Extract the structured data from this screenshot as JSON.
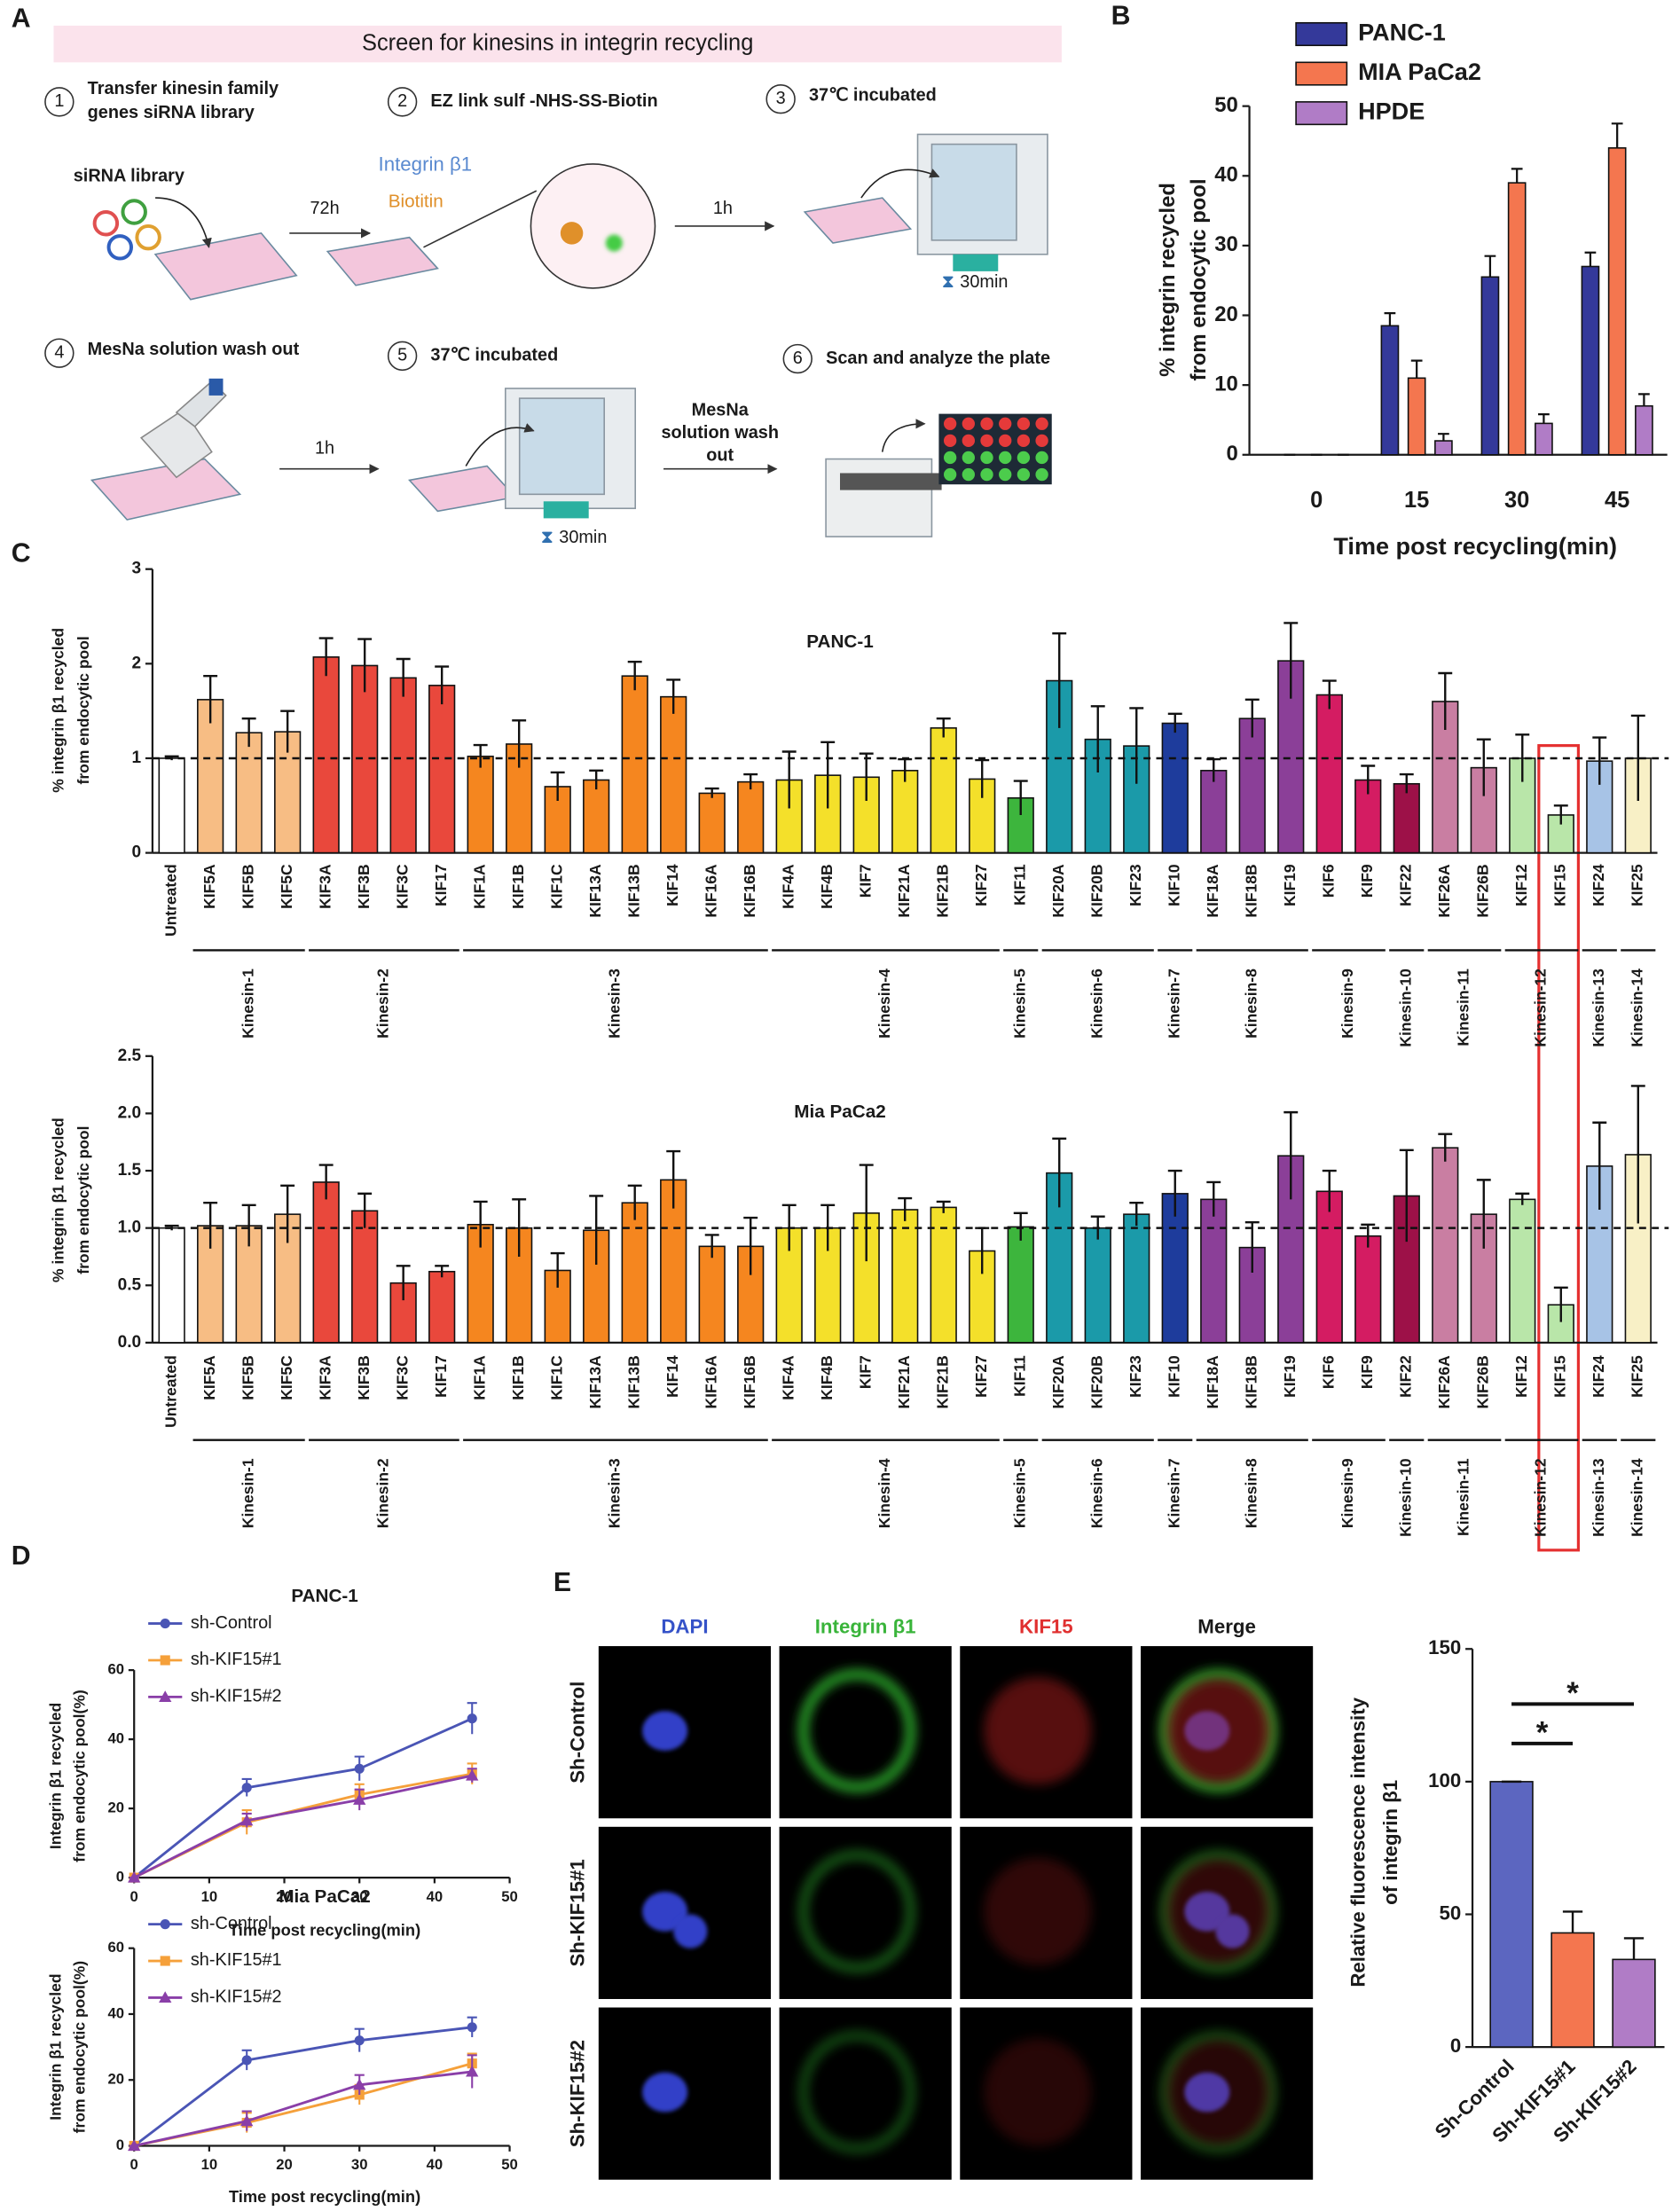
{
  "diagram": {
    "panel": "A",
    "title": "Screen for kinesins in integrin recycling",
    "steps": [
      {
        "number": 1,
        "text": [
          "Transfer kinesin family",
          "genes siRNA library"
        ]
      },
      {
        "number": 2,
        "text": [
          "EZ link sulf -NHS-SS-Biotin"
        ]
      },
      {
        "number": 3,
        "text": [
          "37℃ incubated"
        ]
      },
      {
        "number": 4,
        "text": [
          "MesNa solution wash out"
        ]
      },
      {
        "number": 5,
        "text": [
          "37℃ incubated"
        ]
      },
      {
        "number": 6,
        "text": [
          "Scan and analyze the plate"
        ]
      }
    ],
    "labels": {
      "sirna": "siRNA library",
      "t1": "72h",
      "integrin": "Integrin β1",
      "biotin": "Biotitin",
      "t2": "1h",
      "t3": "30min",
      "t4": "1h",
      "mesna": [
        "MesNa",
        "solution wash",
        "out"
      ],
      "t5": "30min"
    }
  },
  "micrograph": {
    "panel": "E",
    "channels": [
      "DAPI",
      "Integrin β1",
      "KIF15",
      "Merge"
    ],
    "channel_colors": [
      "#3552c8",
      "#39b43a",
      "#e03030",
      "#1a1a1a"
    ],
    "conditions": [
      "Sh-Control",
      "Sh-KIF15#1",
      "Sh-KIF15#2"
    ]
  },
  "chart_data": [
    {
      "type": "bar",
      "panel": "B",
      "xlabel": "Time post recycling(min)",
      "ylabel": [
        "% integrin recycled",
        "from endocytic pool"
      ],
      "categories": [
        "0",
        "15",
        "30",
        "45"
      ],
      "series": [
        {
          "name": "PANC-1",
          "color": "#34399a",
          "values": [
            0,
            18.5,
            25.5,
            27
          ],
          "errors": [
            0,
            1.8,
            3,
            2
          ]
        },
        {
          "name": "MIA PaCa2",
          "color": "#f4764f",
          "values": [
            0,
            11,
            39,
            44
          ],
          "errors": [
            0,
            2.5,
            2,
            3.5
          ]
        },
        {
          "name": "HPDE",
          "color": "#b07cc6",
          "values": [
            0,
            2,
            4.5,
            7
          ],
          "errors": [
            0,
            1,
            1.3,
            1.7
          ]
        }
      ],
      "ylim": [
        0,
        50
      ],
      "yticks": [
        0,
        10,
        20,
        30,
        40,
        50
      ]
    },
    {
      "type": "bar",
      "panel": "C",
      "title": "PANC-1",
      "ylabel": [
        "% integrin β1 recycled",
        "from endocytic pool"
      ],
      "color": "#ffffff",
      "categories": [
        "Untreated",
        "KIF5A",
        "KIF5B",
        "KIF5C",
        "KIF3A",
        "KIF3B",
        "KIF3C",
        "KIF17",
        "KIF1A",
        "KIF1B",
        "KIF1C",
        "KIF13A",
        "KIF13B",
        "KIF14",
        "KIF16A",
        "KIF16B",
        "KIF4A",
        "KIF4B",
        "KIF7",
        "KIF21A",
        "KIF21B",
        "KIF27",
        "KIF11",
        "KIF20A",
        "KIF20B",
        "KIF23",
        "KIF10",
        "KIF18A",
        "KIF18B",
        "KIF19",
        "KIF6",
        "KIF9",
        "KIF22",
        "KIF26A",
        "KIF26B",
        "KIF12",
        "KIF15",
        "KIF24",
        "KIF25"
      ],
      "values": [
        1.0,
        1.62,
        1.27,
        1.28,
        2.07,
        1.98,
        1.85,
        1.77,
        1.02,
        1.15,
        0.7,
        0.77,
        1.87,
        1.65,
        0.63,
        0.75,
        0.77,
        0.82,
        0.8,
        0.87,
        1.32,
        0.78,
        0.58,
        1.82,
        1.2,
        1.13,
        1.37,
        0.87,
        1.42,
        2.03,
        1.67,
        0.77,
        0.73,
        1.6,
        0.9,
        1.0,
        0.4,
        0.97,
        1.0
      ],
      "errors": [
        0.02,
        0.25,
        0.15,
        0.22,
        0.2,
        0.28,
        0.2,
        0.2,
        0.12,
        0.25,
        0.15,
        0.1,
        0.15,
        0.18,
        0.05,
        0.08,
        0.3,
        0.35,
        0.25,
        0.12,
        0.1,
        0.2,
        0.18,
        0.5,
        0.35,
        0.4,
        0.1,
        0.12,
        0.2,
        0.4,
        0.15,
        0.15,
        0.1,
        0.3,
        0.3,
        0.25,
        0.1,
        0.25,
        0.45
      ],
      "groups": [
        {
          "name": "Kinesin-1",
          "size": 3,
          "color": "#f7bd84"
        },
        {
          "name": "Kinesin-2",
          "size": 4,
          "color": "#e9483c"
        },
        {
          "name": "Kinesin-3",
          "size": 8,
          "color": "#f5861f"
        },
        {
          "name": "Kinesin-4",
          "size": 6,
          "color": "#f4e02a"
        },
        {
          "name": "Kinesin-5",
          "size": 1,
          "color": "#3db53d"
        },
        {
          "name": "Kinesin-6",
          "size": 3,
          "color": "#1b9aa9"
        },
        {
          "name": "Kinesin-7",
          "size": 1,
          "color": "#1e3c9c"
        },
        {
          "name": "Kinesin-8",
          "size": 3,
          "color": "#8b3f98"
        },
        {
          "name": "Kinesin-9",
          "size": 2,
          "color": "#d41c62"
        },
        {
          "name": "Kinesin-10",
          "size": 1,
          "color": "#9d1148"
        },
        {
          "name": "Kinesin-11",
          "size": 2,
          "color": "#c97ea2"
        },
        {
          "name": "Kinesin-12",
          "size": 2,
          "color": "#b9e6a9"
        },
        {
          "name": "Kinesin-13",
          "size": 1,
          "color": "#a7c3e6"
        },
        {
          "name": "Kinesin-14",
          "size": 1,
          "color": "#f8f0c6"
        }
      ],
      "refline": 1,
      "ylim": [
        0,
        3
      ],
      "yticks": [
        0,
        1,
        2,
        3
      ]
    },
    {
      "type": "bar",
      "title": "Mia PaCa2",
      "ylabel": [
        "% integrin β1 recycled",
        "from endocytic pool"
      ],
      "color": "#ffffff",
      "categories": [
        "Untreated",
        "KIF5A",
        "KIF5B",
        "KIF5C",
        "KIF3A",
        "KIF3B",
        "KIF3C",
        "KIF17",
        "KIF1A",
        "KIF1B",
        "KIF1C",
        "KIF13A",
        "KIF13B",
        "KIF14",
        "KIF16A",
        "KIF16B",
        "KIF4A",
        "KIF4B",
        "KIF7",
        "KIF21A",
        "KIF21B",
        "KIF27",
        "KIF11",
        "KIF20A",
        "KIF20B",
        "KIF23",
        "KIF10",
        "KIF18A",
        "KIF18B",
        "KIF19",
        "KIF6",
        "KIF9",
        "KIF22",
        "KIF26A",
        "KIF26B",
        "KIF12",
        "KIF15",
        "KIF24",
        "KIF25"
      ],
      "values": [
        1.0,
        1.02,
        1.02,
        1.12,
        1.4,
        1.15,
        0.52,
        0.62,
        1.03,
        1.0,
        0.63,
        0.98,
        1.22,
        1.42,
        0.84,
        0.84,
        1.0,
        1.0,
        1.13,
        1.16,
        1.18,
        0.8,
        1.01,
        1.48,
        1.0,
        1.12,
        1.3,
        1.25,
        0.83,
        1.63,
        1.32,
        0.93,
        1.28,
        1.7,
        1.12,
        1.25,
        0.33,
        1.54,
        1.64
      ],
      "errors": [
        0.02,
        0.2,
        0.18,
        0.25,
        0.15,
        0.15,
        0.15,
        0.05,
        0.2,
        0.25,
        0.15,
        0.3,
        0.15,
        0.25,
        0.1,
        0.25,
        0.2,
        0.2,
        0.42,
        0.1,
        0.05,
        0.2,
        0.12,
        0.3,
        0.1,
        0.1,
        0.2,
        0.15,
        0.22,
        0.38,
        0.18,
        0.1,
        0.4,
        0.12,
        0.3,
        0.05,
        0.15,
        0.38,
        0.6
      ],
      "groups": [
        {
          "name": "Kinesin-1",
          "size": 3,
          "color": "#f7bd84"
        },
        {
          "name": "Kinesin-2",
          "size": 4,
          "color": "#e9483c"
        },
        {
          "name": "Kinesin-3",
          "size": 8,
          "color": "#f5861f"
        },
        {
          "name": "Kinesin-4",
          "size": 6,
          "color": "#f4e02a"
        },
        {
          "name": "Kinesin-5",
          "size": 1,
          "color": "#3db53d"
        },
        {
          "name": "Kinesin-6",
          "size": 3,
          "color": "#1b9aa9"
        },
        {
          "name": "Kinesin-7",
          "size": 1,
          "color": "#1e3c9c"
        },
        {
          "name": "Kinesin-8",
          "size": 3,
          "color": "#8b3f98"
        },
        {
          "name": "Kinesin-9",
          "size": 2,
          "color": "#d41c62"
        },
        {
          "name": "Kinesin-10",
          "size": 1,
          "color": "#9d1148"
        },
        {
          "name": "Kinesin-11",
          "size": 2,
          "color": "#c97ea2"
        },
        {
          "name": "Kinesin-12",
          "size": 2,
          "color": "#b9e6a9"
        },
        {
          "name": "Kinesin-13",
          "size": 1,
          "color": "#a7c3e6"
        },
        {
          "name": "Kinesin-14",
          "size": 1,
          "color": "#f8f0c6"
        }
      ],
      "refline": 1,
      "ylim": [
        0,
        2.5
      ],
      "yticks": [
        {
          "value": 0,
          "label": "0.0"
        },
        0.5,
        {
          "value": 1,
          "label": "1.0"
        },
        1.5,
        {
          "value": 2,
          "label": "2.0"
        },
        2.5
      ]
    },
    {
      "type": "line",
      "panel": "D",
      "title": "PANC-1",
      "xlabel": "Time post recycling(min)",
      "ylabel": [
        "Integrin β1 recycled",
        "from endocytic pool(%)"
      ],
      "x": [
        0,
        15,
        30,
        45
      ],
      "series": [
        {
          "name": "sh-Control",
          "color": "#4a55b5",
          "marker": "circle",
          "values": [
            0,
            26,
            31.5,
            46
          ],
          "errors": [
            0,
            2.5,
            3.5,
            4.5
          ]
        },
        {
          "name": "sh-KIF15#1",
          "color": "#f5a03a",
          "marker": "square",
          "values": [
            0,
            16,
            24,
            30
          ],
          "errors": [
            0,
            3.5,
            3,
            3
          ]
        },
        {
          "name": "sh-KIF15#2",
          "color": "#8a3fa8",
          "marker": "triangle",
          "values": [
            0,
            16.5,
            22.5,
            29.5
          ],
          "errors": [
            0,
            2,
            3,
            2
          ]
        }
      ],
      "xlim": [
        0,
        50
      ],
      "xticks": [
        0,
        10,
        20,
        30,
        40,
        50
      ],
      "ylim": [
        0,
        60
      ],
      "yticks": [
        0,
        20,
        40,
        60
      ]
    },
    {
      "type": "line",
      "title": "Mia PaCa2",
      "xlabel": "Time post recycling(min)",
      "ylabel": [
        "Integrin β1 recycled",
        "from endocytic pool(%)"
      ],
      "x": [
        0,
        15,
        30,
        45
      ],
      "series": [
        {
          "name": "sh-Control",
          "color": "#4a55b5",
          "marker": "circle",
          "values": [
            0,
            26,
            32,
            36
          ],
          "errors": [
            0,
            3,
            3.5,
            3
          ]
        },
        {
          "name": "sh-KIF15#1",
          "color": "#f5a03a",
          "marker": "square",
          "values": [
            0,
            7,
            15.5,
            25
          ],
          "errors": [
            0,
            3,
            3,
            3
          ]
        },
        {
          "name": "sh-KIF15#2",
          "color": "#8a3fa8",
          "marker": "triangle",
          "values": [
            0,
            7.5,
            18.5,
            22.5
          ],
          "errors": [
            0,
            3,
            3,
            5
          ]
        }
      ],
      "xlim": [
        0,
        50
      ],
      "xticks": [
        0,
        10,
        20,
        30,
        40,
        50
      ],
      "ylim": [
        0,
        60
      ],
      "yticks": [
        0,
        20,
        40,
        60
      ]
    },
    {
      "type": "bar",
      "ylabel": [
        "Relative fluorescence intensity",
        "of integrin β1"
      ],
      "categories": [
        "Sh-Control",
        "Sh-KIF15#1",
        "Sh-KIF15#2"
      ],
      "values": [
        100,
        43,
        33
      ],
      "errors": [
        0,
        8,
        8
      ],
      "colors": [
        "#5c66c0",
        "#f4764f",
        "#b07cc6"
      ],
      "annotations": [
        "*",
        "*"
      ],
      "ylim": [
        0,
        150
      ],
      "yticks": [
        0,
        50,
        100,
        150
      ]
    }
  ]
}
